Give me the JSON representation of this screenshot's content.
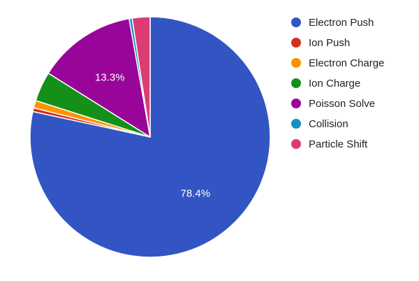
{
  "chart_data": {
    "type": "pie",
    "slices": [
      {
        "label": "Electron Push",
        "value": 78.4,
        "color": "#3355c4",
        "data_label": "78.4%"
      },
      {
        "label": "Ion Push",
        "value": 0.5,
        "color": "#d62f1f",
        "data_label": ""
      },
      {
        "label": "Electron Charge",
        "value": 1.0,
        "color": "#ff9200",
        "data_label": ""
      },
      {
        "label": "Ion Charge",
        "value": 4.0,
        "color": "#149019",
        "data_label": ""
      },
      {
        "label": "Poisson Solve",
        "value": 13.3,
        "color": "#990599",
        "data_label": "13.3%"
      },
      {
        "label": "Collision",
        "value": 0.4,
        "color": "#1590c4",
        "data_label": ""
      },
      {
        "label": "Particle Shift",
        "value": 2.4,
        "color": "#dc3b73",
        "data_label": ""
      }
    ],
    "legend_position": "right"
  }
}
